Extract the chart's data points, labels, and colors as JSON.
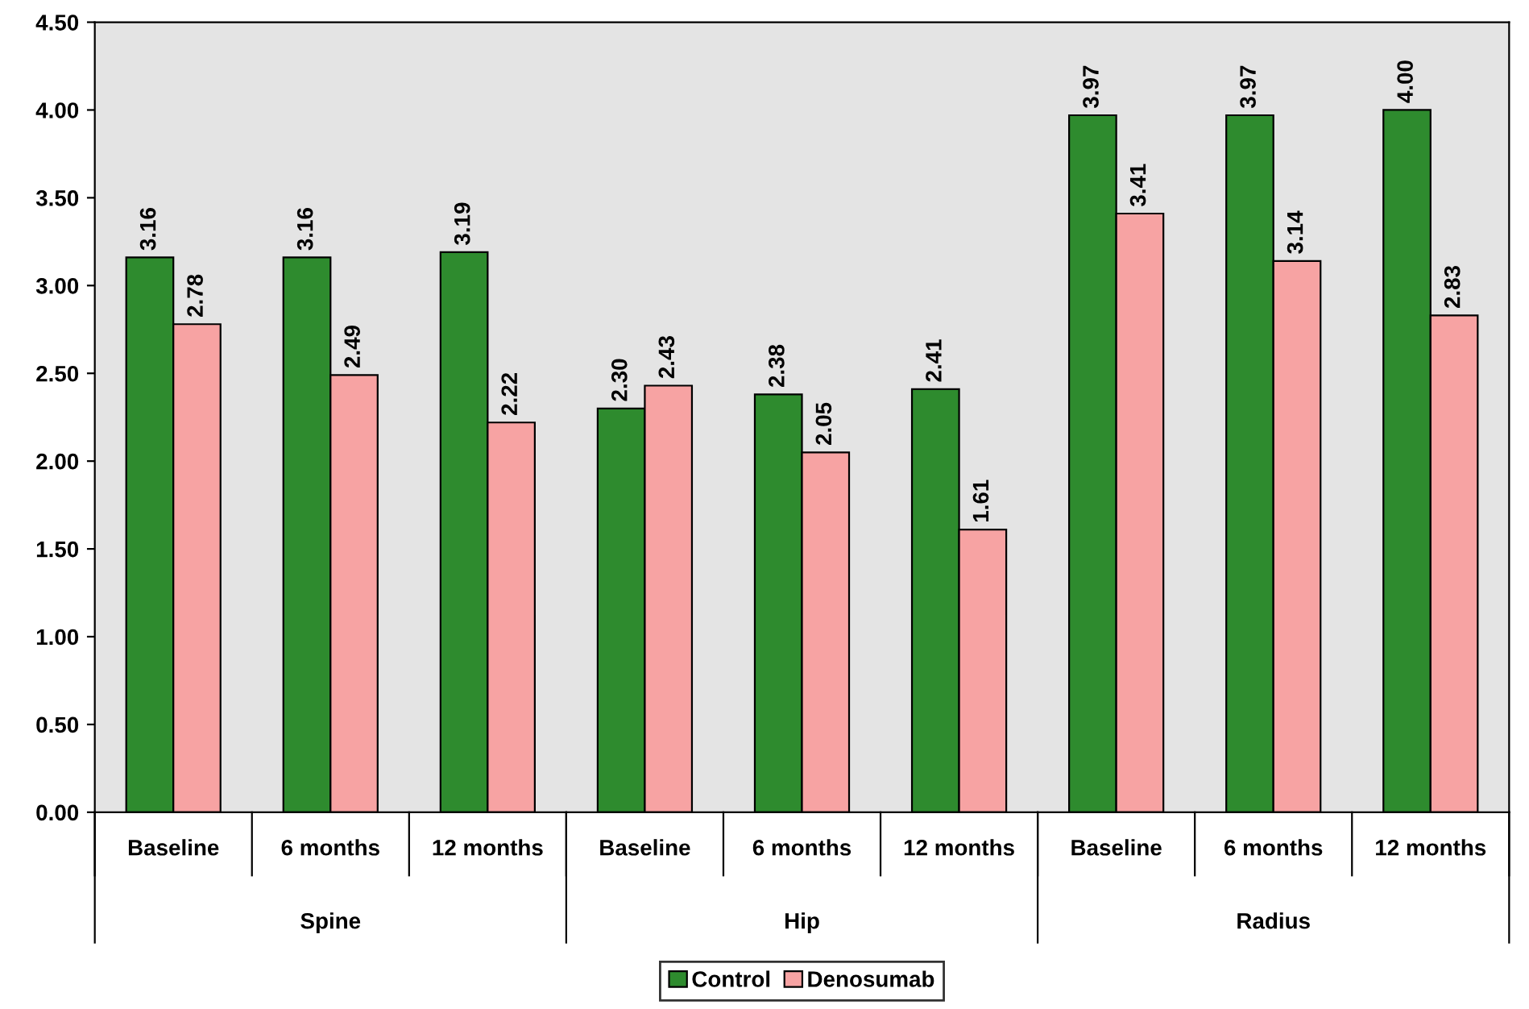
{
  "chart_data": {
    "type": "bar",
    "categories": [
      "Baseline",
      "6 months",
      "12 months",
      "Baseline",
      "6 months",
      "12 months",
      "Baseline",
      "6 months",
      "12 months"
    ],
    "series": [
      {
        "name": "Control",
        "color": "#2e8b2e",
        "values": [
          3.16,
          3.16,
          3.19,
          2.3,
          2.38,
          2.41,
          3.97,
          3.97,
          4.0
        ],
        "value_labels": [
          "3.16",
          "3.16",
          "3.19",
          "2.30",
          "2.38",
          "2.41",
          "3.97",
          "3.97",
          "4.00"
        ]
      },
      {
        "name": "Denosumab",
        "color": "#f7a3a3",
        "values": [
          2.78,
          2.49,
          2.22,
          2.43,
          2.05,
          1.61,
          3.41,
          3.14,
          2.83
        ],
        "value_labels": [
          "2.78",
          "2.49",
          "2.22",
          "2.43",
          "2.05",
          "1.61",
          "3.41",
          "3.14",
          "2.83"
        ]
      }
    ],
    "annotations": [
      "Spine",
      "Hip",
      "Radius"
    ],
    "ylim": [
      0,
      4.5
    ],
    "yticks": [
      {
        "value": 0,
        "label": "0.00"
      },
      {
        "value": 0.5,
        "label": "0.50"
      },
      {
        "value": 1,
        "label": "1.00"
      },
      {
        "value": 1.5,
        "label": "1.50"
      },
      {
        "value": 2,
        "label": "2.00"
      },
      {
        "value": 2.5,
        "label": "2.50"
      },
      {
        "value": 3,
        "label": "3.00"
      },
      {
        "value": 3.5,
        "label": "3.50"
      },
      {
        "value": 4,
        "label": "4.00"
      },
      {
        "value": 4.5,
        "label": "4.50"
      }
    ],
    "grid": false,
    "legend": "bottom"
  }
}
